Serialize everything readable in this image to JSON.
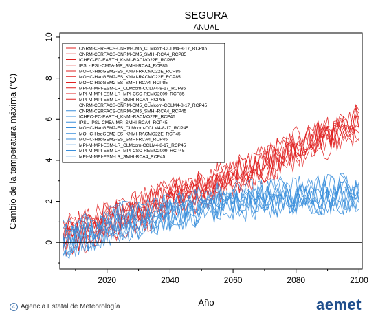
{
  "chart_data": {
    "type": "line",
    "title": "SEGURA",
    "subtitle": "ANUAL",
    "xlabel": "Año",
    "ylabel": "Cambio de la temperatura máxima (°C)",
    "xlim": [
      2005,
      2101
    ],
    "ylim": [
      -1.3,
      10.2
    ],
    "xticks": [
      2020,
      2040,
      2060,
      2080,
      2100
    ],
    "yticks": [
      0,
      2,
      4,
      6,
      8,
      10
    ],
    "grid": false,
    "legend_position": "top-left",
    "colors": {
      "rcp85": "#e02020",
      "rcp45": "#3a8fdc",
      "zero_line": "#000000"
    },
    "legend": [
      "CNRM-CERFACS-CNRM-CM5_CLMcom-CCLM4-8-17_RCP85",
      "CNRM-CERFACS-CNRM-CM5_SMHI-RCA4_RCP85",
      "ICHEC-EC-EARTH_KNMI-RACMO22E_RCP85",
      "IPSL-IPSL-CM5A-MR_SMHI-RCA4_RCP85",
      "MOHC-HadGEM2-ES_KNMI-RACMO22E_RCP85",
      "MOHC-HadGEM2-ES_KNMI-RACMO22E_RCP85",
      "MOHC-HadGEM2-ES_SMHI-RCA4_RCP85",
      "MPI-M-MPI-ESM-LR_CLMcom-CCLM4-8-17_RCP85",
      "MPI-M-MPI-ESM-LR_MPI-CSC-REMO2009_RCP85",
      "MPI-M-MPI-ESM-LR_SMHI-RCA4_RCP85",
      "CNRM-CERFACS-CNRM-CM5_CLMcom-CCLM4-8-17_RCP45",
      "CNRM-CERFACS-CNRM-CM5_SMHI-RCA4_RCP45",
      "ICHEC-EC-EARTH_KNMI-RACMO22E_RCP45",
      "IPSL-IPSL-CM5A-MR_SMHI-RCA4_RCP45",
      "MOHC-HadGEM2-ES_CLMcom-CCLM4-8-17_RCP45",
      "MOHC-HadGEM2-ES_KNMI-RACMO22E_RCP45",
      "MOHC-HadGEM2-ES_SMHI-RCA4_RCP45",
      "MPI-M-MPI-ESM-LR_CLMcom-CCLM4-8-17_RCP45",
      "MPI-M-MPI-ESM-LR_MPI-CSC-REMO2009_RCP45",
      "MPI-M-MPI-ESM-LR_SMHI-RCA4_RCP45"
    ],
    "series_groups": [
      {
        "scenario": "RCP85",
        "count": 10,
        "trend_years": [
          2006,
          2020,
          2040,
          2060,
          2080,
          2100
        ],
        "trend_values": [
          0.3,
          1.0,
          2.1,
          3.1,
          4.6,
          5.8
        ]
      },
      {
        "scenario": "RCP45",
        "count": 10,
        "trend_years": [
          2006,
          2020,
          2040,
          2060,
          2080,
          2100
        ],
        "trend_values": [
          0.3,
          1.0,
          1.7,
          2.2,
          2.4,
          2.6
        ]
      }
    ]
  },
  "footer": {
    "credit": "Agencia Estatal de Meteorología",
    "logo": "aemet"
  }
}
